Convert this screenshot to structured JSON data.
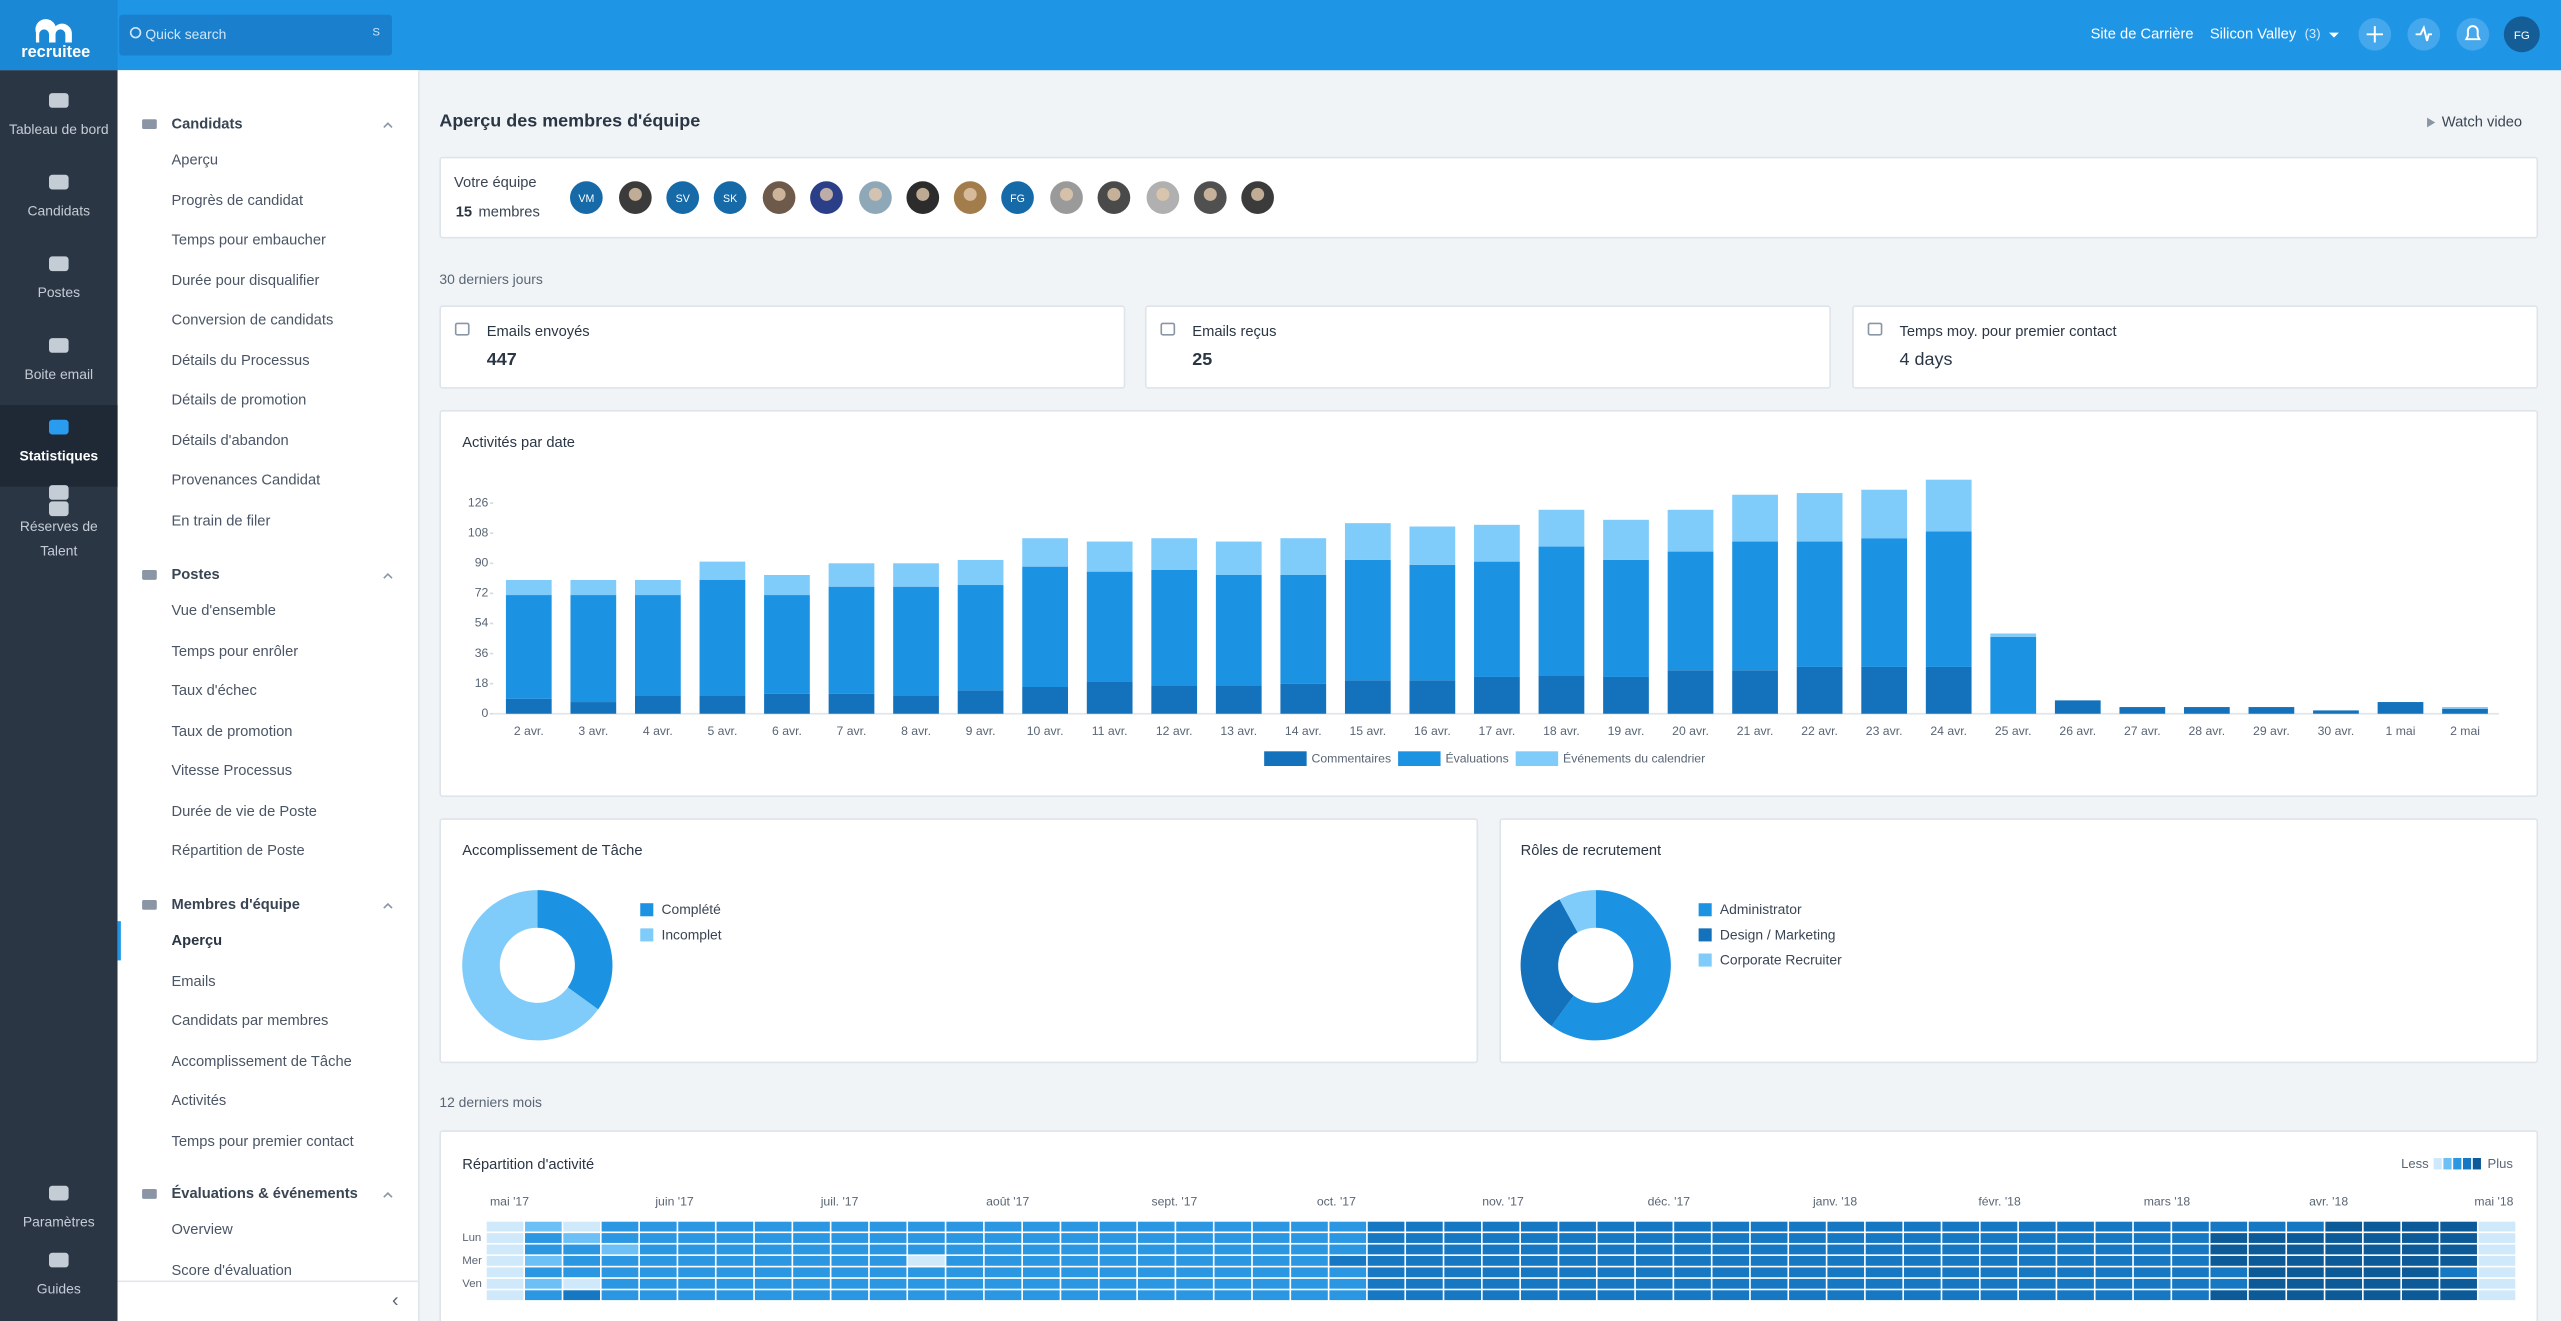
{
  "topbar": {
    "logo": "recruitee",
    "search_placeholder": "Quick search",
    "search_shortcut": "S",
    "career_site": "Site de Carrière",
    "company": "Silicon Valley",
    "company_count": "(3)",
    "user_initials": "FG"
  },
  "nav": [
    {
      "label": "Tableau de bord"
    },
    {
      "label": "Candidats"
    },
    {
      "label": "Postes"
    },
    {
      "label": "Boite email"
    },
    {
      "label": "Statistiques",
      "active": true
    },
    {
      "label": "Réserves de Talent"
    },
    {
      "label": "Paramètres"
    },
    {
      "label": "Guides"
    }
  ],
  "sections": [
    {
      "title": "Candidats",
      "items": [
        "Aperçu",
        "Progrès de candidat",
        "Temps pour embaucher",
        "Durée pour disqualifier",
        "Conversion de candidats",
        "Détails du Processus",
        "Détails de promotion",
        "Détails d'abandon",
        "Provenances Candidat",
        "En train de filer"
      ]
    },
    {
      "title": "Postes",
      "items": [
        "Vue d'ensemble",
        "Temps pour enrôler",
        "Taux d'échec",
        "Taux de promotion",
        "Vitesse Processus",
        "Durée de vie de Poste",
        "Répartition de Poste"
      ]
    },
    {
      "title": "Membres d'équipe",
      "items": [
        "Aperçu",
        "Emails",
        "Candidats par membres",
        "Accomplissement de Tâche",
        "Activités",
        "Temps pour premier contact"
      ],
      "active_item": 0
    },
    {
      "title": "Évaluations & événements",
      "items": [
        "Overview",
        "Score d'évaluation"
      ]
    }
  ],
  "page": {
    "title": "Aperçu des membres d'équipe",
    "watch_video": "Watch video"
  },
  "team": {
    "label": "Votre équipe",
    "count": 15,
    "count_label": "membres",
    "avatars": [
      "VM",
      null,
      "SV",
      "SK",
      null,
      null,
      null,
      null,
      null,
      "FG",
      null,
      null,
      null,
      null,
      null
    ]
  },
  "period_30": "30 derniers jours",
  "kpis": [
    {
      "label": "Emails envoyés",
      "value": 447
    },
    {
      "label": "Emails reçus",
      "value": 25
    },
    {
      "label": "Temps moy. pour premier contact",
      "value": 4,
      "value_label": "4 days"
    }
  ],
  "period_12": "12 derniers mois",
  "chart_data": [
    {
      "type": "bar",
      "stacked": true,
      "title": "Activités par date",
      "legend": "bottom",
      "categories": [
        "2 avr.",
        "3 avr.",
        "4 avr.",
        "5 avr.",
        "6 avr.",
        "7 avr.",
        "8 avr.",
        "9 avr.",
        "10 avr.",
        "11 avr.",
        "12 avr.",
        "13 avr.",
        "14 avr.",
        "15 avr.",
        "16 avr.",
        "17 avr.",
        "18 avr.",
        "19 avr.",
        "20 avr.",
        "21 avr.",
        "22 avr.",
        "23 avr.",
        "24 avr.",
        "25 avr.",
        "26 avr.",
        "27 avr.",
        "28 avr.",
        "29 avr.",
        "30 avr.",
        "1 mai",
        "2 mai"
      ],
      "series": [
        {
          "name": "Commentaires",
          "color": "#1372bb",
          "values": [
            9,
            7,
            11,
            11,
            12,
            12,
            11,
            14,
            16,
            19,
            17,
            17,
            18,
            20,
            20,
            22,
            23,
            22,
            26,
            26,
            28,
            28,
            28,
            0,
            8,
            4,
            4,
            4,
            2,
            7,
            3
          ]
        },
        {
          "name": "Évaluations",
          "color": "#1c92e3",
          "values": [
            62,
            64,
            60,
            69,
            59,
            64,
            65,
            63,
            72,
            66,
            69,
            66,
            65,
            72,
            69,
            69,
            77,
            70,
            71,
            77,
            75,
            77,
            81,
            46,
            0,
            0,
            0,
            0,
            0,
            0,
            0
          ]
        },
        {
          "name": "Événements du calendrier",
          "color": "#7fcbfa",
          "values": [
            9,
            9,
            9,
            11,
            12,
            14,
            14,
            15,
            17,
            18,
            19,
            20,
            22,
            22,
            23,
            22,
            22,
            24,
            25,
            28,
            29,
            29,
            31,
            2,
            0,
            0,
            0,
            0,
            0,
            0,
            1
          ]
        }
      ],
      "ylim": [
        0,
        140
      ],
      "yticks": [
        0,
        18,
        36,
        54,
        72,
        90,
        108,
        126
      ]
    },
    {
      "type": "pie",
      "donut": true,
      "title": "Accomplissement de Tâche",
      "legend": "right",
      "categories": [
        "Complété",
        "Incomplet"
      ],
      "values": [
        35,
        65
      ],
      "colors": [
        "#1c92e3",
        "#7fcbfa"
      ]
    },
    {
      "type": "pie",
      "donut": true,
      "title": "Rôles de recrutement",
      "legend": "right",
      "categories": [
        "Administrator",
        "Design / Marketing",
        "Corporate Recruiter"
      ],
      "values": [
        60,
        32,
        8
      ],
      "colors": [
        "#1c92e3",
        "#1372bb",
        "#7fcbfa"
      ]
    },
    {
      "type": "heatmap",
      "title": "Répartition d'activité",
      "legend_low": "Less",
      "legend_high": "Plus",
      "x_labels": [
        "mai '17",
        "juin '17",
        "juil. '17",
        "août '17",
        "sept. '17",
        "oct. '17",
        "nov. '17",
        "déc. '17",
        "janv. '18",
        "févr. '18",
        "mars '18",
        "avr. '18",
        "mai '18"
      ],
      "y_labels": [
        null,
        "Lun",
        null,
        "Mer",
        null,
        "Ven",
        null
      ],
      "colors": [
        "#cfe9fb",
        "#6cc0f5",
        "#2b97e2",
        "#1677c3",
        "#0c5a98"
      ],
      "values": [
        [
          0,
          1,
          0,
          2,
          2,
          2,
          2,
          2,
          2,
          2,
          2,
          2,
          2,
          2,
          2,
          2,
          2,
          2,
          2,
          2,
          2,
          2,
          2,
          3,
          3,
          3,
          3,
          3,
          3,
          3,
          3,
          3,
          3,
          3,
          3,
          3,
          3,
          3,
          3,
          3,
          3,
          3,
          3,
          3,
          3,
          3,
          3,
          3,
          4,
          4,
          4,
          4,
          0
        ],
        [
          0,
          2,
          1,
          2,
          2,
          2,
          2,
          2,
          2,
          2,
          2,
          2,
          2,
          2,
          2,
          2,
          2,
          2,
          2,
          2,
          2,
          2,
          2,
          3,
          3,
          3,
          3,
          3,
          3,
          3,
          3,
          3,
          3,
          3,
          3,
          3,
          3,
          3,
          3,
          3,
          3,
          3,
          3,
          3,
          3,
          4,
          4,
          4,
          4,
          4,
          4,
          4,
          0
        ],
        [
          0,
          2,
          2,
          1,
          2,
          2,
          2,
          2,
          2,
          2,
          2,
          2,
          2,
          2,
          2,
          2,
          2,
          2,
          2,
          2,
          2,
          2,
          2,
          3,
          3,
          3,
          3,
          3,
          3,
          3,
          3,
          3,
          3,
          3,
          3,
          3,
          3,
          3,
          3,
          3,
          3,
          3,
          3,
          3,
          3,
          4,
          4,
          4,
          4,
          4,
          4,
          4,
          0
        ],
        [
          0,
          1,
          2,
          2,
          2,
          2,
          2,
          2,
          2,
          2,
          2,
          0,
          2,
          2,
          2,
          2,
          2,
          2,
          2,
          2,
          2,
          2,
          3,
          3,
          3,
          3,
          3,
          3,
          3,
          3,
          3,
          3,
          3,
          3,
          3,
          3,
          3,
          3,
          3,
          3,
          3,
          3,
          3,
          3,
          3,
          4,
          4,
          4,
          4,
          4,
          4,
          4,
          0
        ],
        [
          0,
          2,
          2,
          2,
          2,
          2,
          2,
          2,
          2,
          2,
          2,
          2,
          2,
          2,
          2,
          2,
          2,
          2,
          2,
          2,
          2,
          2,
          2,
          3,
          3,
          3,
          3,
          3,
          3,
          3,
          3,
          3,
          3,
          3,
          3,
          3,
          3,
          3,
          3,
          3,
          3,
          3,
          3,
          3,
          3,
          3,
          4,
          4,
          4,
          4,
          4,
          3,
          0
        ],
        [
          0,
          1,
          0,
          2,
          2,
          2,
          2,
          2,
          2,
          2,
          2,
          2,
          2,
          2,
          2,
          2,
          2,
          2,
          2,
          2,
          2,
          2,
          2,
          3,
          3,
          3,
          3,
          3,
          3,
          3,
          3,
          3,
          3,
          3,
          3,
          3,
          3,
          3,
          3,
          3,
          3,
          3,
          3,
          3,
          3,
          3,
          4,
          4,
          4,
          4,
          4,
          4,
          0
        ],
        [
          0,
          2,
          3,
          2,
          2,
          2,
          2,
          2,
          2,
          2,
          2,
          2,
          2,
          2,
          2,
          2,
          2,
          2,
          2,
          2,
          2,
          2,
          2,
          3,
          3,
          3,
          3,
          3,
          3,
          3,
          3,
          3,
          3,
          3,
          3,
          3,
          3,
          3,
          3,
          3,
          3,
          3,
          3,
          3,
          3,
          4,
          4,
          4,
          4,
          4,
          4,
          4,
          0
        ]
      ]
    }
  ]
}
